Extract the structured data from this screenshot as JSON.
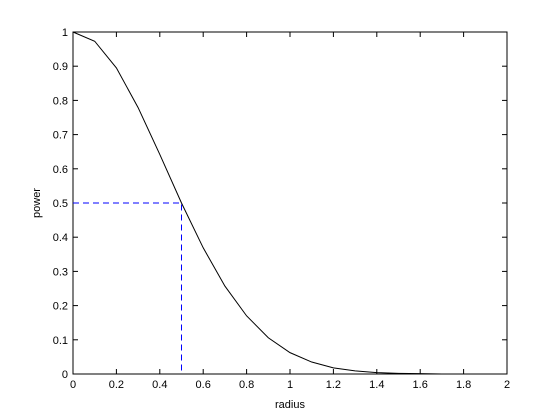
{
  "chart_data": {
    "type": "line",
    "x_label": "radius",
    "y_label": "power",
    "xlim": [
      0,
      2
    ],
    "ylim": [
      0,
      1
    ],
    "xticks": [
      0,
      0.2,
      0.4,
      0.6,
      0.8,
      1,
      1.2,
      1.4,
      1.6,
      1.8,
      2
    ],
    "yticks": [
      0,
      0.1,
      0.2,
      0.3,
      0.4,
      0.5,
      0.6,
      0.7,
      0.8,
      0.9,
      1
    ],
    "series": [
      {
        "color": "#000000",
        "dashed": false,
        "x": [
          0,
          0.1,
          0.2,
          0.3,
          0.4,
          0.5,
          0.6,
          0.7,
          0.8,
          0.9,
          1,
          1.1,
          1.2,
          1.3,
          1.4,
          1.5,
          1.6,
          1.7,
          1.8,
          1.9,
          2
        ],
        "values": [
          1,
          0.973,
          0.895,
          0.779,
          0.642,
          0.5,
          0.369,
          0.257,
          0.17,
          0.106,
          0.0625,
          0.035,
          0.018,
          0.009,
          0.004,
          0.002,
          0.001,
          0,
          0,
          0,
          0
        ]
      },
      {
        "color": "#0000ff",
        "dashed": true,
        "x": [
          0,
          0.5,
          0.5
        ],
        "values": [
          0.5,
          0.5,
          0
        ]
      }
    ]
  }
}
